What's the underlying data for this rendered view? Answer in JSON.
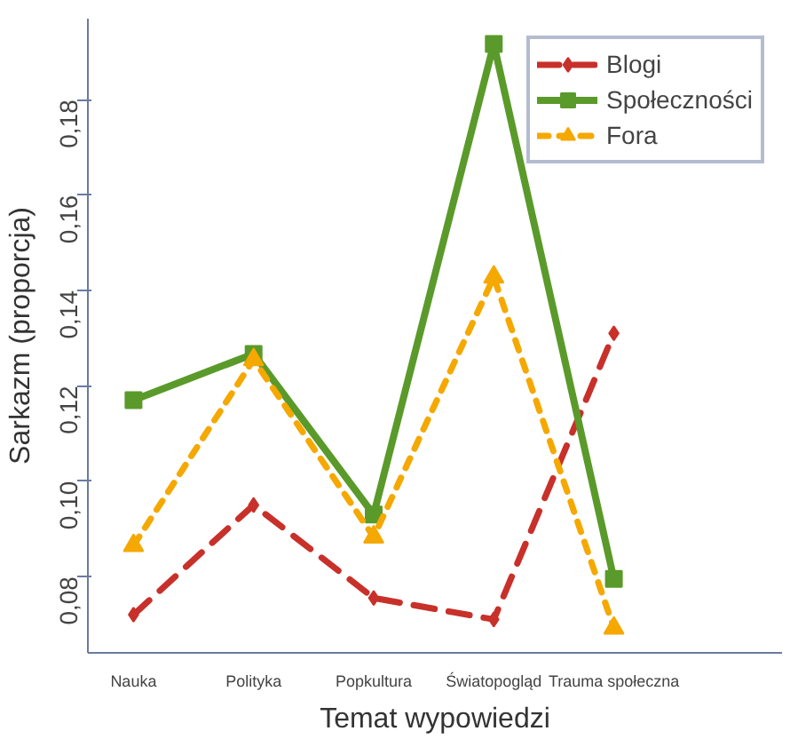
{
  "chart_data": {
    "type": "line",
    "xlabel": "Temat wypowiedzi",
    "ylabel": "Sarkazm (proporcja)",
    "categories": [
      "Nauka",
      "Polityka",
      "Popkultura",
      "Światopogląd",
      "Trauma społeczna"
    ],
    "ylim": [
      0.064,
      0.197
    ],
    "yticks": [
      {
        "value": 0.08,
        "label": "0,08"
      },
      {
        "value": 0.1,
        "label": "0,10"
      },
      {
        "value": 0.12,
        "label": "0,12"
      },
      {
        "value": 0.14,
        "label": "0,14"
      },
      {
        "value": 0.16,
        "label": "0,16"
      },
      {
        "value": 0.18,
        "label": "0,18"
      }
    ],
    "grid": false,
    "legend": "top right",
    "series": [
      {
        "name": "Blogi",
        "color": "#c8302a",
        "marker": "diamond",
        "line_style": "dashed",
        "values": [
          0.072,
          0.095,
          0.0755,
          0.071,
          0.131
        ]
      },
      {
        "name": "Społeczności",
        "color": "#5a9a2a",
        "marker": "square",
        "line_style": "solid",
        "values": [
          0.117,
          0.1267,
          0.093,
          0.1917,
          0.0795
        ]
      },
      {
        "name": "Fora",
        "color": "#f5a800",
        "marker": "triangle",
        "line_style": "dotted",
        "values": [
          0.0865,
          0.1255,
          0.0883,
          0.1428,
          0.0692
        ]
      }
    ]
  }
}
